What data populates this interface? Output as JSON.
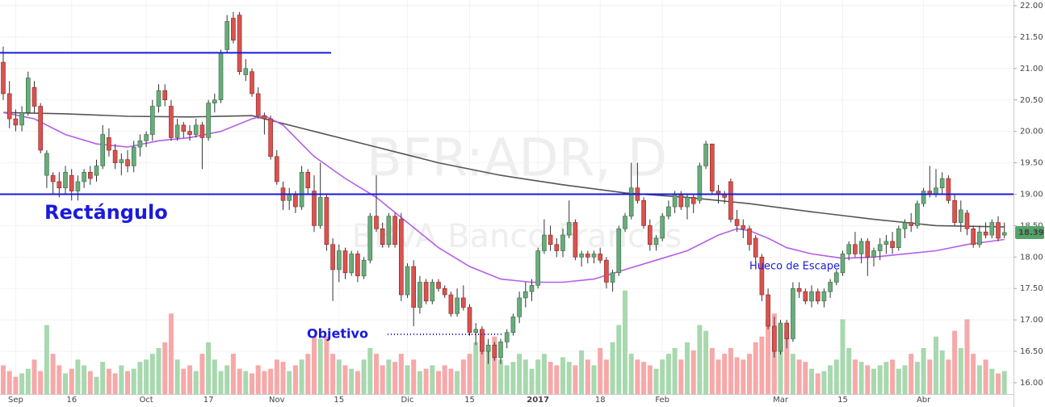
{
  "chart_data": {
    "type": "candlestick",
    "watermark": [
      "BFR:ADR, D",
      "BBVA Banco Francés"
    ],
    "annotations": [
      "Rectángulo",
      "Objetivo",
      "Hueco de Escape"
    ],
    "resistance_lines": [
      21.25,
      19.0
    ],
    "target_line": 16.77,
    "line_color": "#1a1adb",
    "up_color": "#6aab7c",
    "down_color": "#d9534f",
    "volume_up_color": "#a8d8ae",
    "volume_down_color": "#f7a8a8",
    "ylim": [
      15.82,
      22.09
    ],
    "volume_lim": [
      0,
      200
    ],
    "yticks": [
      {
        "value": 16,
        "label": "16.00"
      },
      {
        "value": 16.5,
        "label": "16.50"
      },
      {
        "value": 17,
        "label": "17.00"
      },
      {
        "value": 17.5,
        "label": "17.50"
      },
      {
        "value": 18,
        "label": "18.00"
      },
      {
        "value": 18.5,
        "label": "18.50"
      },
      {
        "value": 19,
        "label": "19.00"
      },
      {
        "value": 19.5,
        "label": "19.50"
      },
      {
        "value": 20,
        "label": "20.00"
      },
      {
        "value": 20.5,
        "label": "20.50"
      },
      {
        "value": 21,
        "label": "21.00"
      },
      {
        "value": 21.5,
        "label": "21.50"
      },
      {
        "value": 22,
        "label": "22.00"
      }
    ],
    "grid": true,
    "categories": [
      null,
      null,
      "Sep",
      null,
      null,
      null,
      null,
      null,
      null,
      null,
      null,
      "16",
      null,
      null,
      null,
      null,
      null,
      null,
      null,
      null,
      null,
      null,
      null,
      "Oct",
      null,
      null,
      null,
      null,
      null,
      null,
      null,
      null,
      null,
      "17",
      null,
      null,
      null,
      null,
      null,
      null,
      null,
      null,
      null,
      null,
      "Nov",
      null,
      null,
      null,
      null,
      null,
      null,
      null,
      null,
      null,
      "15",
      null,
      null,
      null,
      null,
      null,
      null,
      null,
      null,
      null,
      null,
      "Dic",
      null,
      null,
      null,
      null,
      null,
      null,
      null,
      null,
      null,
      "15",
      null,
      null,
      null,
      null,
      null,
      null,
      null,
      null,
      null,
      null,
      "2017",
      null,
      null,
      null,
      null,
      null,
      null,
      null,
      null,
      null,
      "18",
      null,
      null,
      null,
      null,
      null,
      null,
      null,
      null,
      null,
      "Feb",
      null,
      null,
      null,
      null,
      null,
      null,
      null,
      null,
      null,
      null,
      null,
      null,
      null,
      null,
      null,
      null,
      null,
      null,
      "Mar",
      null,
      null,
      null,
      null,
      null,
      null,
      null,
      null,
      null,
      "15",
      null,
      null,
      null,
      null,
      null,
      null,
      null,
      null,
      null,
      null,
      null,
      null,
      "Abr",
      null,
      null,
      null,
      null,
      null,
      null,
      null,
      null,
      null,
      null,
      null,
      null,
      null
    ],
    "ohlc": [
      [
        21.1,
        21.35,
        20.5,
        20.6
      ],
      [
        20.6,
        20.8,
        20.05,
        20.2
      ],
      [
        20.2,
        20.35,
        20.0,
        20.1
      ],
      [
        20.1,
        20.4,
        20.0,
        20.3
      ],
      [
        20.3,
        20.95,
        20.25,
        20.85
      ],
      [
        20.7,
        20.8,
        20.3,
        20.4
      ],
      [
        20.4,
        20.45,
        19.65,
        19.7
      ],
      [
        19.3,
        19.7,
        19.1,
        19.65
      ],
      [
        19.3,
        19.35,
        19.0,
        19.2
      ],
      [
        19.2,
        19.35,
        18.95,
        19.1
      ],
      [
        19.1,
        19.45,
        19.0,
        19.35
      ],
      [
        19.3,
        19.4,
        18.9,
        19.05
      ],
      [
        19.05,
        19.3,
        18.9,
        19.2
      ],
      [
        19.2,
        19.4,
        19.1,
        19.35
      ],
      [
        19.35,
        19.45,
        19.15,
        19.25
      ],
      [
        19.3,
        19.55,
        19.2,
        19.45
      ],
      [
        19.45,
        20.1,
        19.4,
        19.95
      ],
      [
        19.9,
        20.05,
        19.6,
        19.7
      ],
      [
        19.7,
        19.8,
        19.4,
        19.5
      ],
      [
        19.5,
        19.65,
        19.3,
        19.55
      ],
      [
        19.55,
        19.7,
        19.35,
        19.45
      ],
      [
        19.45,
        19.85,
        19.35,
        19.75
      ],
      [
        19.75,
        19.95,
        19.6,
        19.85
      ],
      [
        19.85,
        20.0,
        19.75,
        19.95
      ],
      [
        19.95,
        20.5,
        19.85,
        20.4
      ],
      [
        20.4,
        20.75,
        20.3,
        20.65
      ],
      [
        20.65,
        20.75,
        20.4,
        20.5
      ],
      [
        20.4,
        20.5,
        19.85,
        19.9
      ],
      [
        19.9,
        20.2,
        19.85,
        20.1
      ],
      [
        20.1,
        20.15,
        19.9,
        20.0
      ],
      [
        20.0,
        20.1,
        19.85,
        19.95
      ],
      [
        19.95,
        20.2,
        19.9,
        20.1
      ],
      [
        20.1,
        20.15,
        19.4,
        19.9
      ],
      [
        19.9,
        20.5,
        19.85,
        20.45
      ],
      [
        20.45,
        20.6,
        20.3,
        20.5
      ],
      [
        20.5,
        21.3,
        20.45,
        21.25
      ],
      [
        21.3,
        21.85,
        21.25,
        21.75
      ],
      [
        21.8,
        21.9,
        21.4,
        21.45
      ],
      [
        21.85,
        21.9,
        20.9,
        20.95
      ],
      [
        20.9,
        21.15,
        20.8,
        21.0
      ],
      [
        20.95,
        21.0,
        20.55,
        20.6
      ],
      [
        20.6,
        20.7,
        20.2,
        20.25
      ],
      [
        20.25,
        20.3,
        19.95,
        20.2
      ],
      [
        20.2,
        20.25,
        19.55,
        19.6
      ],
      [
        19.6,
        19.7,
        19.15,
        19.2
      ],
      [
        19.1,
        19.2,
        18.75,
        18.9
      ],
      [
        18.9,
        19.1,
        18.75,
        19.0
      ],
      [
        19.0,
        19.05,
        18.7,
        18.8
      ],
      [
        18.8,
        19.45,
        18.75,
        19.35
      ],
      [
        19.35,
        19.4,
        19.0,
        19.1
      ],
      [
        19.05,
        19.3,
        18.4,
        18.5
      ],
      [
        18.5,
        19.5,
        18.45,
        18.95
      ],
      [
        18.95,
        19.0,
        18.1,
        18.2
      ],
      [
        18.2,
        18.3,
        17.3,
        17.8
      ],
      [
        17.8,
        18.2,
        17.6,
        18.1
      ],
      [
        18.1,
        18.15,
        17.65,
        17.75
      ],
      [
        17.75,
        18.1,
        17.7,
        18.05
      ],
      [
        18.05,
        18.1,
        17.6,
        17.7
      ],
      [
        17.7,
        18.0,
        17.65,
        17.95
      ],
      [
        17.95,
        18.7,
        17.9,
        18.65
      ],
      [
        18.65,
        19.3,
        18.4,
        18.45
      ],
      [
        18.45,
        18.55,
        18.15,
        18.2
      ],
      [
        18.2,
        18.7,
        18.15,
        18.65
      ],
      [
        18.65,
        18.7,
        18.15,
        18.2
      ],
      [
        18.6,
        18.7,
        17.3,
        17.4
      ],
      [
        17.4,
        17.9,
        17.35,
        17.85
      ],
      [
        17.85,
        17.95,
        16.9,
        17.2
      ],
      [
        17.2,
        17.7,
        17.1,
        17.6
      ],
      [
        17.6,
        17.65,
        17.25,
        17.3
      ],
      [
        17.3,
        17.65,
        17.25,
        17.6
      ],
      [
        17.6,
        17.65,
        17.45,
        17.5
      ],
      [
        17.5,
        17.55,
        17.35,
        17.4
      ],
      [
        17.4,
        17.45,
        17.05,
        17.1
      ],
      [
        17.1,
        17.5,
        17.05,
        17.35
      ],
      [
        17.35,
        17.55,
        17.15,
        17.2
      ],
      [
        17.2,
        17.25,
        16.75,
        16.8
      ],
      [
        16.8,
        16.95,
        16.6,
        16.85
      ],
      [
        16.85,
        16.9,
        16.45,
        16.5
      ],
      [
        16.5,
        16.7,
        16.3,
        16.6
      ],
      [
        16.6,
        16.65,
        16.35,
        16.4
      ],
      [
        16.4,
        16.7,
        16.3,
        16.65
      ],
      [
        16.65,
        16.85,
        16.55,
        16.8
      ],
      [
        16.8,
        17.1,
        16.75,
        17.05
      ],
      [
        17.05,
        17.45,
        16.95,
        17.35
      ],
      [
        17.35,
        17.6,
        17.2,
        17.45
      ],
      [
        17.45,
        17.65,
        17.3,
        17.55
      ],
      [
        17.55,
        18.15,
        17.5,
        18.1
      ],
      [
        18.1,
        18.6,
        18.05,
        18.35
      ],
      [
        18.35,
        18.5,
        18.1,
        18.2
      ],
      [
        18.2,
        18.3,
        18.0,
        18.1
      ],
      [
        18.1,
        18.45,
        18.0,
        18.35
      ],
      [
        18.35,
        18.9,
        18.3,
        18.55
      ],
      [
        18.55,
        18.6,
        17.95,
        18.0
      ],
      [
        18.0,
        18.1,
        17.85,
        18.05
      ],
      [
        18.05,
        18.1,
        17.9,
        18.0
      ],
      [
        18.0,
        18.1,
        17.9,
        18.05
      ],
      [
        18.05,
        18.15,
        17.9,
        17.95
      ],
      [
        17.95,
        18.0,
        17.5,
        17.6
      ],
      [
        17.6,
        17.8,
        17.45,
        17.75
      ],
      [
        17.75,
        18.5,
        17.7,
        18.45
      ],
      [
        18.45,
        18.7,
        18.4,
        18.65
      ],
      [
        18.65,
        19.5,
        18.6,
        19.1
      ],
      [
        19.1,
        19.5,
        18.85,
        18.9
      ],
      [
        18.9,
        18.95,
        18.45,
        18.5
      ],
      [
        18.5,
        18.6,
        18.1,
        18.2
      ],
      [
        18.2,
        18.35,
        18.1,
        18.3
      ],
      [
        18.3,
        18.7,
        18.25,
        18.65
      ],
      [
        18.65,
        18.9,
        18.6,
        18.8
      ],
      [
        18.8,
        19.05,
        18.7,
        19.0
      ],
      [
        19.0,
        19.05,
        18.75,
        18.8
      ],
      [
        18.8,
        19.0,
        18.6,
        18.95
      ],
      [
        18.95,
        19.0,
        18.7,
        18.85
      ],
      [
        18.9,
        19.5,
        18.85,
        19.45
      ],
      [
        19.45,
        19.85,
        19.4,
        19.8
      ],
      [
        19.8,
        19.8,
        19.0,
        19.05
      ],
      [
        19.05,
        19.15,
        18.85,
        19.0
      ],
      [
        19.0,
        19.05,
        18.85,
        18.95
      ],
      [
        19.2,
        19.25,
        18.55,
        18.6
      ],
      [
        18.6,
        18.75,
        18.4,
        18.5
      ],
      [
        18.5,
        18.6,
        18.3,
        18.45
      ],
      [
        18.45,
        18.5,
        18.1,
        18.2
      ],
      [
        18.3,
        18.35,
        17.9,
        18.0
      ],
      [
        18.0,
        18.05,
        17.3,
        17.4
      ],
      [
        17.4,
        17.5,
        16.85,
        16.9
      ],
      [
        16.9,
        17.05,
        16.4,
        16.5
      ],
      [
        16.5,
        17.0,
        16.45,
        16.95
      ],
      [
        16.95,
        17.0,
        16.55,
        16.7
      ],
      [
        16.7,
        17.6,
        16.65,
        17.5
      ],
      [
        17.5,
        17.6,
        17.35,
        17.45
      ],
      [
        17.45,
        17.5,
        17.25,
        17.3
      ],
      [
        17.3,
        17.55,
        17.2,
        17.45
      ],
      [
        17.45,
        17.5,
        17.25,
        17.3
      ],
      [
        17.3,
        17.5,
        17.2,
        17.45
      ],
      [
        17.45,
        17.65,
        17.35,
        17.6
      ],
      [
        17.6,
        17.8,
        17.55,
        17.75
      ],
      [
        17.75,
        18.1,
        17.7,
        18.05
      ],
      [
        18.05,
        18.25,
        17.95,
        18.2
      ],
      [
        18.2,
        18.4,
        18.0,
        18.05
      ],
      [
        18.05,
        18.3,
        17.9,
        18.25
      ],
      [
        18.25,
        18.3,
        17.7,
        18.0
      ],
      [
        18.0,
        18.15,
        17.85,
        18.1
      ],
      [
        18.1,
        18.3,
        17.95,
        18.2
      ],
      [
        18.2,
        18.35,
        18.05,
        18.25
      ],
      [
        18.25,
        18.4,
        18.05,
        18.15
      ],
      [
        18.15,
        18.5,
        18.1,
        18.45
      ],
      [
        18.45,
        18.6,
        18.3,
        18.55
      ],
      [
        18.55,
        18.7,
        18.4,
        18.5
      ],
      [
        18.5,
        18.9,
        18.45,
        18.85
      ],
      [
        18.85,
        19.1,
        18.8,
        19.05
      ],
      [
        19.05,
        19.45,
        18.95,
        19.0
      ],
      [
        19.0,
        19.4,
        18.95,
        19.1
      ],
      [
        19.1,
        19.35,
        19.0,
        19.25
      ],
      [
        19.25,
        19.3,
        18.85,
        18.9
      ],
      [
        18.9,
        19.0,
        18.5,
        18.55
      ],
      [
        18.55,
        18.9,
        18.4,
        18.75
      ],
      [
        18.7,
        18.75,
        18.35,
        18.45
      ],
      [
        18.45,
        18.5,
        18.15,
        18.2
      ],
      [
        18.2,
        18.5,
        18.15,
        18.4
      ],
      [
        18.4,
        18.55,
        18.3,
        18.35
      ],
      [
        18.35,
        18.6,
        18.3,
        18.55
      ],
      [
        18.55,
        18.65,
        18.25,
        18.3
      ],
      [
        18.35,
        18.55,
        18.3,
        18.39
      ]
    ],
    "volume": [
      25,
      20,
      15,
      18,
      22,
      30,
      20,
      60,
      35,
      25,
      18,
      22,
      30,
      25,
      20,
      15,
      28,
      22,
      18,
      25,
      20,
      22,
      28,
      30,
      35,
      40,
      45,
      70,
      30,
      22,
      25,
      20,
      35,
      45,
      30,
      20,
      25,
      35,
      22,
      20,
      18,
      25,
      20,
      22,
      30,
      28,
      20,
      25,
      30,
      35,
      50,
      48,
      50,
      35,
      30,
      25,
      22,
      20,
      30,
      40,
      35,
      25,
      30,
      28,
      35,
      25,
      30,
      20,
      22,
      25,
      20,
      25,
      22,
      20,
      30,
      35,
      45,
      55,
      40,
      50,
      30,
      25,
      28,
      35,
      30,
      22,
      30,
      35,
      28,
      25,
      32,
      28,
      25,
      38,
      30,
      25,
      40,
      30,
      45,
      60,
      90,
      35,
      30,
      28,
      25,
      22,
      30,
      35,
      40,
      30,
      45,
      38,
      60,
      55,
      40,
      30,
      35,
      40,
      32,
      30,
      35,
      45,
      50,
      65,
      70,
      60,
      55,
      35,
      30,
      28,
      22,
      18,
      20,
      25,
      30,
      65,
      40,
      30,
      28,
      25,
      22,
      25,
      28,
      30,
      22,
      25,
      35,
      28,
      40,
      30,
      50,
      38,
      30,
      55,
      40,
      65,
      35,
      25,
      30,
      22,
      18,
      20
    ],
    "series": [
      {
        "color": "#555555",
        "x": [
          0,
          10,
          20,
          30,
          40,
          50,
          60,
          70,
          80,
          90,
          100,
          110,
          120,
          130,
          140,
          150,
          161
        ],
        "values": [
          20.3,
          20.28,
          20.24,
          20.23,
          20.25,
          20.0,
          19.75,
          19.5,
          19.3,
          19.15,
          19.02,
          18.95,
          18.85,
          18.72,
          18.6,
          18.5,
          18.48
        ]
      },
      {
        "color": "#b55ee8",
        "x": [
          0,
          5,
          10,
          15,
          20,
          25,
          30,
          35,
          40,
          42,
          45,
          50,
          55,
          60,
          65,
          70,
          75,
          80,
          85,
          90,
          95,
          100,
          105,
          110,
          115,
          118,
          120,
          123,
          126,
          130,
          135,
          140,
          145,
          150,
          155,
          161
        ],
        "values": [
          20.3,
          20.2,
          19.95,
          19.8,
          19.75,
          19.85,
          19.9,
          20.0,
          20.2,
          20.25,
          20.1,
          19.6,
          19.25,
          18.95,
          18.55,
          18.15,
          17.85,
          17.65,
          17.6,
          17.6,
          17.65,
          17.8,
          17.95,
          18.1,
          18.35,
          18.45,
          18.42,
          18.3,
          18.15,
          18.05,
          17.98,
          18.0,
          18.05,
          18.1,
          18.2,
          18.28
        ]
      }
    ]
  }
}
